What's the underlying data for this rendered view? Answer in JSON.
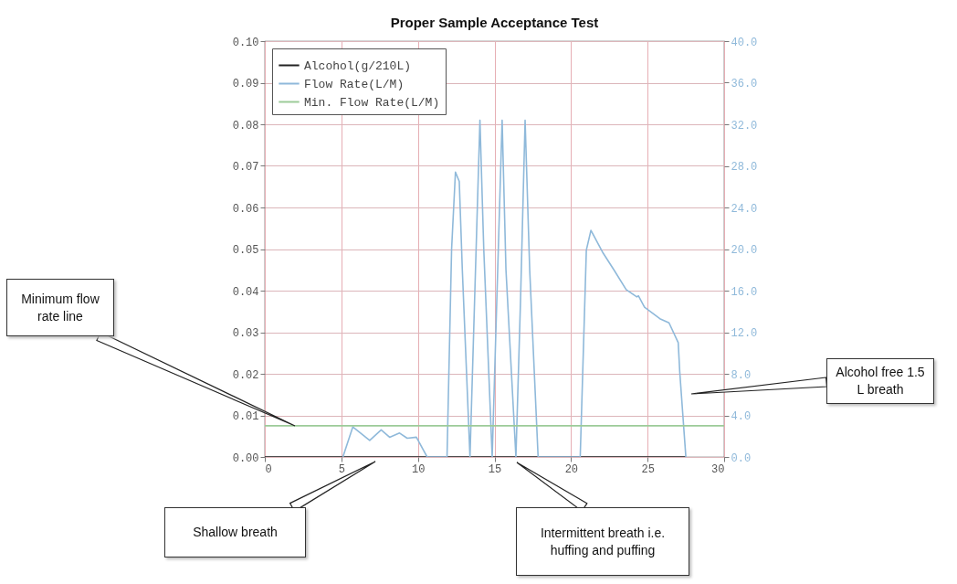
{
  "chart_data": {
    "type": "line",
    "title": "Proper Sample Acceptance Test",
    "xlim": [
      0,
      30
    ],
    "xticks": [
      0,
      5,
      10,
      15,
      20,
      25,
      30
    ],
    "ylim": [
      0,
      0.1
    ],
    "yticks": [
      {
        "value": 0,
        "label": "0.00"
      },
      0.01,
      0.02,
      0.03,
      0.04,
      0.05,
      0.06,
      0.07,
      0.08,
      0.09,
      {
        "value": 0.1,
        "label": "0.10"
      }
    ],
    "y2lim": [
      0,
      40
    ],
    "y2ticks": [
      {
        "value": 0,
        "label": "0.0"
      },
      {
        "value": 4,
        "label": "4.0"
      },
      {
        "value": 8,
        "label": "8.0"
      },
      {
        "value": 12,
        "label": "12.0"
      },
      {
        "value": 16,
        "label": "16.0"
      },
      {
        "value": 20,
        "label": "20.0"
      },
      {
        "value": 24,
        "label": "24.0"
      },
      {
        "value": 28,
        "label": "28.0"
      },
      {
        "value": 32,
        "label": "32.0"
      },
      {
        "value": 36,
        "label": "36.0"
      },
      {
        "value": 40,
        "label": "40.0"
      }
    ],
    "grid": true,
    "legend": "top left",
    "series": [
      {
        "name": "Alcohol(g/210L)",
        "color": "#222222",
        "axis": "y",
        "x": [
          0,
          27.5
        ],
        "values": [
          0,
          0
        ]
      },
      {
        "name": "Flow Rate(L/M)",
        "color": "#8fb9da",
        "axis": "y2",
        "x": [
          5.1,
          5.75,
          6.85,
          7.6,
          8.15,
          8.8,
          9.3,
          9.9,
          10.6,
          11.9,
          12.2,
          12.45,
          12.7,
          12.9,
          13.4,
          13.7,
          14.05,
          14.3,
          14.85,
          15.15,
          15.5,
          15.75,
          16.4,
          16.7,
          17.0,
          17.3,
          17.85,
          20.6,
          21.0,
          21.3,
          22.1,
          22.8,
          23.6,
          24.3,
          24.4,
          24.8,
          25.8,
          26.4,
          27.0,
          27.1,
          27.5
        ],
        "values": [
          0,
          2.9,
          1.6,
          2.6,
          1.9,
          2.3,
          1.8,
          1.9,
          0,
          0,
          20,
          27.4,
          26.5,
          18,
          0,
          15,
          32.4,
          20,
          0,
          15,
          32.4,
          18,
          0,
          15,
          32.4,
          18,
          0,
          0,
          19.9,
          21.8,
          19.6,
          18.0,
          16.1,
          15.4,
          15.5,
          14.4,
          13.3,
          12.9,
          11.0,
          8.2,
          0
        ]
      },
      {
        "name": "Min. Flow Rate(L/M)",
        "color": "#9ccb98",
        "axis": "y2",
        "x": [
          0,
          30
        ],
        "values": [
          3,
          3
        ]
      }
    ],
    "annotations": [
      "Minimum flow rate line",
      "Shallow breath",
      "Intermittent breath i.e. huffing and puffing",
      "Alcohol free 1.5 L breath"
    ]
  }
}
